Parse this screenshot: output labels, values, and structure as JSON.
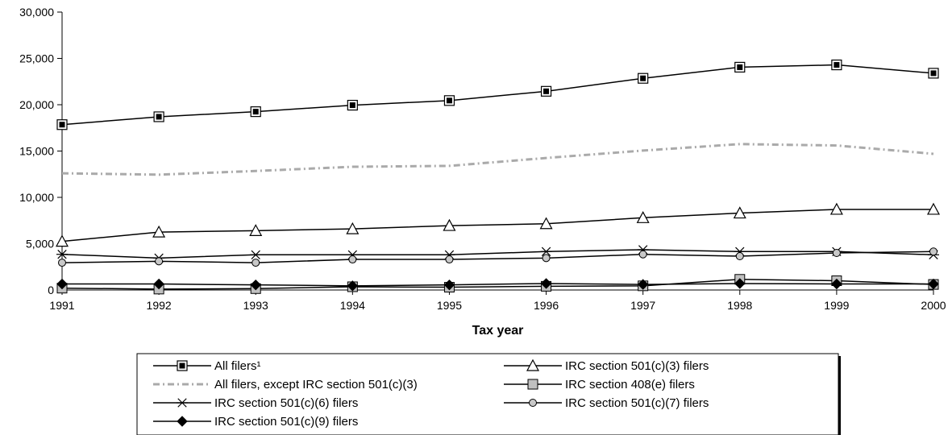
{
  "chart_data": {
    "type": "line",
    "title": "",
    "xlabel": "Tax year",
    "ylabel": "",
    "x": [
      "1991",
      "1992",
      "1993",
      "1994",
      "1995",
      "1996",
      "1997",
      "1998",
      "1999",
      "2000"
    ],
    "ylim": [
      0,
      30000
    ],
    "yticks": [
      "0",
      "5,000",
      "10,000",
      "15,000",
      "20,000",
      "25,000",
      "30,000"
    ],
    "ytick_values": [
      0,
      5000,
      10000,
      15000,
      20000,
      25000,
      30000
    ],
    "grid": false,
    "legend_position": "bottom",
    "series": [
      {
        "name": "All filers¹",
        "marker": "square-dark",
        "color": "#000000",
        "values": [
          17850,
          18700,
          19250,
          19950,
          20450,
          21450,
          22850,
          24050,
          24300,
          23400
        ]
      },
      {
        "name": "IRC section 501(c)(3) filers",
        "marker": "triangle",
        "color": "#000000",
        "values": [
          5250,
          6250,
          6400,
          6600,
          6950,
          7150,
          7800,
          8300,
          8700,
          8700
        ]
      },
      {
        "name": "All filers, except IRC section 501(c)(3)",
        "marker": "none",
        "color": "#aaaaaa",
        "dashed": true,
        "values": [
          12600,
          12450,
          12850,
          13300,
          13400,
          14250,
          15050,
          15750,
          15600,
          14700
        ]
      },
      {
        "name": "IRC section 408(e) filers",
        "marker": "square-light",
        "color": "#000000",
        "values": [
          200,
          100,
          150,
          350,
          300,
          400,
          450,
          1150,
          1000,
          600
        ]
      },
      {
        "name": "IRC section 501(c)(6) filers",
        "marker": "asterisk",
        "color": "#000000",
        "values": [
          3850,
          3450,
          3800,
          3800,
          3800,
          4150,
          4350,
          4150,
          4150,
          3800
        ]
      },
      {
        "name": "IRC section 501(c)(7) filers",
        "marker": "circle",
        "color": "#000000",
        "values": [
          2950,
          3100,
          2950,
          3300,
          3300,
          3450,
          3850,
          3650,
          4000,
          4150
        ]
      },
      {
        "name": "IRC section 501(c)(9) filers",
        "marker": "diamond",
        "color": "#000000",
        "values": [
          650,
          650,
          550,
          450,
          550,
          700,
          600,
          700,
          650,
          650
        ]
      }
    ]
  }
}
